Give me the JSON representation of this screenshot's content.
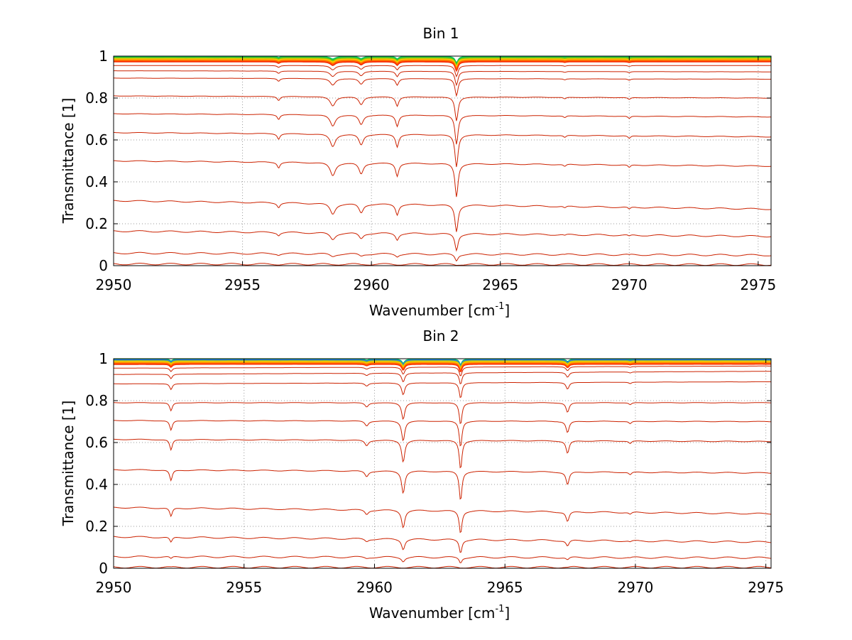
{
  "figure": {
    "background": "#ffffff"
  },
  "chart_data": [
    {
      "type": "line",
      "title": "Bin 1",
      "xlabel": "Wavenumber [cm",
      "xlabel_sup": "-1",
      "xlabel_close": "]",
      "ylabel": "Transmittance [1]",
      "xlim": [
        2950,
        2975.5
      ],
      "ylim": [
        0,
        1
      ],
      "xticks": [
        2950,
        2955,
        2960,
        2965,
        2970,
        2975
      ],
      "xtick_labels": [
        "2950",
        "2955",
        "2960",
        "2965",
        "2970",
        "2975"
      ],
      "yticks": [
        0,
        0.2,
        0.4,
        0.6,
        0.8,
        1
      ],
      "ytick_labels": [
        "0",
        "0.2",
        "0.4",
        "0.6",
        "0.8",
        "1"
      ],
      "grid": true,
      "line_color": "#cc2200",
      "top_colors": [
        "#00cc66",
        "#33bb33",
        "#99cc00",
        "#ffcc00",
        "#ff9900",
        "#ff6600",
        "#ff3300"
      ],
      "baselines": [
        {
          "start": 0.008,
          "end": 0.005
        },
        {
          "start": 0.06,
          "end": 0.05
        },
        {
          "start": 0.165,
          "end": 0.14
        },
        {
          "start": 0.31,
          "end": 0.27
        },
        {
          "start": 0.5,
          "end": 0.475
        },
        {
          "start": 0.635,
          "end": 0.615
        },
        {
          "start": 0.725,
          "end": 0.71
        },
        {
          "start": 0.81,
          "end": 0.8
        },
        {
          "start": 0.895,
          "end": 0.89
        },
        {
          "start": 0.93,
          "end": 0.925
        },
        {
          "start": 0.955,
          "end": 0.955
        },
        {
          "start": 0.972,
          "end": 0.972
        },
        {
          "start": 0.985,
          "end": 0.985
        }
      ],
      "absorption_lines": [
        {
          "x": 2956.4,
          "rel_depth": 0.03,
          "width": 0.06
        },
        {
          "x": 2958.5,
          "rel_depth": 0.07,
          "width": 0.12
        },
        {
          "x": 2959.6,
          "rel_depth": 0.06,
          "width": 0.1
        },
        {
          "x": 2961.0,
          "rel_depth": 0.07,
          "width": 0.07
        },
        {
          "x": 2963.3,
          "rel_depth": 0.18,
          "width": 0.07
        },
        {
          "x": 2967.5,
          "rel_depth": 0.012,
          "width": 0.06
        },
        {
          "x": 2970.0,
          "rel_depth": 0.015,
          "width": 0.06
        }
      ]
    },
    {
      "type": "line",
      "title": "Bin 2",
      "xlabel": "Wavenumber [cm",
      "xlabel_sup": "-1",
      "xlabel_close": "]",
      "ylabel": "Transmittance [1]",
      "xlim": [
        2950,
        2975.2
      ],
      "ylim": [
        0,
        1
      ],
      "xticks": [
        2950,
        2955,
        2960,
        2965,
        2970,
        2975
      ],
      "xtick_labels": [
        "2950",
        "2955",
        "2960",
        "2965",
        "2970",
        "2975"
      ],
      "yticks": [
        0,
        0.2,
        0.4,
        0.6,
        0.8,
        1
      ],
      "ytick_labels": [
        "0",
        "0.2",
        "0.4",
        "0.6",
        "0.8",
        "1"
      ],
      "grid": true,
      "line_color": "#cc2200",
      "top_colors": [
        "#00cc66",
        "#3366ff",
        "#99cc00",
        "#ffcc00",
        "#ff9900",
        "#ff6600",
        "#ff3300"
      ],
      "baselines": [
        {
          "start": 0.005,
          "end": 0.005
        },
        {
          "start": 0.055,
          "end": 0.05
        },
        {
          "start": 0.15,
          "end": 0.125
        },
        {
          "start": 0.29,
          "end": 0.26
        },
        {
          "start": 0.47,
          "end": 0.455
        },
        {
          "start": 0.615,
          "end": 0.605
        },
        {
          "start": 0.705,
          "end": 0.7
        },
        {
          "start": 0.79,
          "end": 0.79
        },
        {
          "start": 0.88,
          "end": 0.89
        },
        {
          "start": 0.925,
          "end": 0.94
        },
        {
          "start": 0.955,
          "end": 0.965
        },
        {
          "start": 0.972,
          "end": 0.98
        },
        {
          "start": 0.987,
          "end": 0.99
        }
      ],
      "absorption_lines": [
        {
          "x": 2952.2,
          "rel_depth": 0.06,
          "width": 0.06
        },
        {
          "x": 2959.7,
          "rel_depth": 0.03,
          "width": 0.08
        },
        {
          "x": 2961.1,
          "rel_depth": 0.12,
          "width": 0.07
        },
        {
          "x": 2963.3,
          "rel_depth": 0.16,
          "width": 0.06
        },
        {
          "x": 2967.4,
          "rel_depth": 0.07,
          "width": 0.07
        },
        {
          "x": 2969.8,
          "rel_depth": 0.015,
          "width": 0.06
        }
      ]
    }
  ]
}
